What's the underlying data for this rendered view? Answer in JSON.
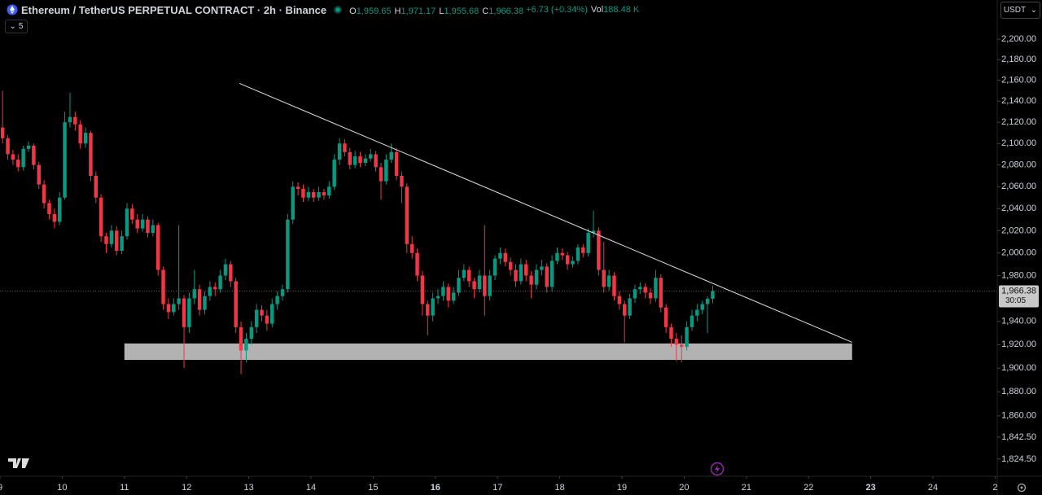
{
  "header": {
    "symbol": "Ethereum / TetherUS PERPETUAL CONTRACT · 2h · Binance",
    "stats": [
      {
        "key": "O",
        "value": "1,959.65"
      },
      {
        "key": "H",
        "value": "1,971.17"
      },
      {
        "key": "L",
        "value": "1,955.68"
      },
      {
        "key": "C",
        "value": "1,966.38"
      }
    ],
    "change": "+6.73 (+0.34%)",
    "volume_key": "Vol",
    "volume": "188.48 K",
    "indicator_count": "5",
    "currency": "USDT"
  },
  "chart_data": {
    "type": "candlestick",
    "log": true,
    "up_color": "#089981",
    "down_color": "#f23645",
    "xlim": [
      0,
      192.4
    ],
    "ylim": [
      1810.6,
      2238.7
    ],
    "yticks": [
      {
        "value": 2200,
        "label": "2,200.00"
      },
      {
        "value": 2180,
        "label": "2,180.00"
      },
      {
        "value": 2160,
        "label": "2,160.00"
      },
      {
        "value": 2140,
        "label": "2,140.00"
      },
      {
        "value": 2120,
        "label": "2,120.00"
      },
      {
        "value": 2100,
        "label": "2,100.00"
      },
      {
        "value": 2080,
        "label": "2,080.00"
      },
      {
        "value": 2060,
        "label": "2,060.00"
      },
      {
        "value": 2040,
        "label": "2,040.00"
      },
      {
        "value": 2020,
        "label": "2,020.00"
      },
      {
        "value": 2000,
        "label": "2,000.00"
      },
      {
        "value": 1980,
        "label": "1,980.00"
      },
      {
        "value": 1940,
        "label": "1,940.00"
      },
      {
        "value": 1920,
        "label": "1,920.00"
      },
      {
        "value": 1900,
        "label": "1,900.00"
      },
      {
        "value": 1880,
        "label": "1,880.00"
      },
      {
        "value": 1860,
        "label": "1,860.00"
      },
      {
        "value": 1842.5,
        "label": "1,842.50"
      },
      {
        "value": 1824.5,
        "label": "1,824.50"
      }
    ],
    "xticks": [
      {
        "value": 0,
        "label": "9"
      },
      {
        "value": 12,
        "label": "10"
      },
      {
        "value": 24,
        "label": "11"
      },
      {
        "value": 36,
        "label": "12"
      },
      {
        "value": 48,
        "label": "13"
      },
      {
        "value": 60,
        "label": "14"
      },
      {
        "value": 72,
        "label": "15"
      },
      {
        "value": 84,
        "label": "16",
        "bold": true
      },
      {
        "value": 96,
        "label": "17"
      },
      {
        "value": 108,
        "label": "18"
      },
      {
        "value": 120,
        "label": "19"
      },
      {
        "value": 132,
        "label": "20"
      },
      {
        "value": 144,
        "label": "21"
      },
      {
        "value": 156,
        "label": "22"
      },
      {
        "value": 168,
        "label": "23",
        "bold": true
      },
      {
        "value": 180,
        "label": "24"
      },
      {
        "value": 192,
        "label": "2"
      }
    ],
    "price_label": {
      "value": 1966.38,
      "label": "1,966.38"
    },
    "countdown": "30:05",
    "trendline": {
      "x": [
        46.2,
        164.4
      ],
      "y": [
        2157,
        1922
      ]
    },
    "zone": {
      "x": [
        24,
        164.4
      ],
      "y": [
        1907,
        1921
      ]
    },
    "ohlc": [
      [
        2115,
        2150,
        2100,
        2105
      ],
      [
        2105,
        2108,
        2085,
        2090
      ],
      [
        2090,
        2094,
        2080,
        2085
      ],
      [
        2085,
        2090,
        2074,
        2078
      ],
      [
        2078,
        2098,
        2075,
        2095
      ],
      [
        2095,
        2102,
        2092,
        2098
      ],
      [
        2098,
        2100,
        2076,
        2080
      ],
      [
        2080,
        2083,
        2058,
        2062
      ],
      [
        2062,
        2066,
        2040,
        2045
      ],
      [
        2045,
        2048,
        2030,
        2035
      ],
      [
        2035,
        2040,
        2022,
        2028
      ],
      [
        2028,
        2055,
        2025,
        2050
      ],
      [
        2050,
        2130,
        2048,
        2120
      ],
      [
        2120,
        2148,
        2115,
        2125
      ],
      [
        2125,
        2130,
        2112,
        2118
      ],
      [
        2118,
        2122,
        2095,
        2100
      ],
      [
        2100,
        2115,
        2096,
        2110
      ],
      [
        2110,
        2112,
        2065,
        2070
      ],
      [
        2070,
        2074,
        2045,
        2050
      ],
      [
        2050,
        2053,
        2010,
        2015
      ],
      [
        2015,
        2018,
        2000,
        2008
      ],
      [
        2008,
        2025,
        2005,
        2020
      ],
      [
        2020,
        2024,
        1998,
        2002
      ],
      [
        2002,
        2020,
        1999,
        2015
      ],
      [
        2015,
        2045,
        2012,
        2040
      ],
      [
        2040,
        2044,
        2026,
        2030
      ],
      [
        2030,
        2035,
        2018,
        2022
      ],
      [
        2022,
        2035,
        2019,
        2030
      ],
      [
        2030,
        2033,
        2014,
        2018
      ],
      [
        2018,
        2030,
        2015,
        2025
      ],
      [
        2025,
        2027,
        1980,
        1985
      ],
      [
        1985,
        1988,
        1950,
        1955
      ],
      [
        1955,
        1960,
        1942,
        1948
      ],
      [
        1948,
        1960,
        1945,
        1955
      ],
      [
        1955,
        2025,
        1950,
        1960
      ],
      [
        1960,
        1963,
        1900,
        1935
      ],
      [
        1935,
        1965,
        1930,
        1960
      ],
      [
        1960,
        1985,
        1955,
        1968
      ],
      [
        1968,
        1972,
        1945,
        1950
      ],
      [
        1950,
        1966,
        1946,
        1962
      ],
      [
        1962,
        1975,
        1958,
        1970
      ],
      [
        1970,
        1974,
        1962,
        1968
      ],
      [
        1968,
        1985,
        1965,
        1980
      ],
      [
        1980,
        1995,
        1976,
        1990
      ],
      [
        1990,
        1993,
        1970,
        1975
      ],
      [
        1975,
        1978,
        1930,
        1935
      ],
      [
        1935,
        1940,
        1895,
        1915
      ],
      [
        1915,
        1930,
        1905,
        1925
      ],
      [
        1925,
        1940,
        1920,
        1935
      ],
      [
        1935,
        1955,
        1930,
        1950
      ],
      [
        1950,
        1954,
        1940,
        1945
      ],
      [
        1945,
        1950,
        1932,
        1938
      ],
      [
        1938,
        1960,
        1935,
        1955
      ],
      [
        1955,
        1966,
        1950,
        1962
      ],
      [
        1962,
        1972,
        1958,
        1968
      ],
      [
        1968,
        2035,
        1965,
        2030
      ],
      [
        2030,
        2065,
        2026,
        2060
      ],
      [
        2060,
        2064,
        2052,
        2058
      ],
      [
        2058,
        2062,
        2046,
        2050
      ],
      [
        2050,
        2060,
        2047,
        2055
      ],
      [
        2055,
        2058,
        2046,
        2050
      ],
      [
        2050,
        2060,
        2047,
        2055
      ],
      [
        2055,
        2058,
        2048,
        2052
      ],
      [
        2052,
        2065,
        2049,
        2060
      ],
      [
        2060,
        2090,
        2057,
        2085
      ],
      [
        2085,
        2105,
        2080,
        2100
      ],
      [
        2100,
        2104,
        2088,
        2092
      ],
      [
        2092,
        2096,
        2076,
        2080
      ],
      [
        2080,
        2093,
        2077,
        2088
      ],
      [
        2088,
        2092,
        2078,
        2082
      ],
      [
        2082,
        2090,
        2079,
        2086
      ],
      [
        2086,
        2095,
        2083,
        2090
      ],
      [
        2090,
        2093,
        2074,
        2078
      ],
      [
        2078,
        2082,
        2048,
        2065
      ],
      [
        2065,
        2090,
        2062,
        2085
      ],
      [
        2085,
        2100,
        2082,
        2092
      ],
      [
        2092,
        2096,
        2066,
        2070
      ],
      [
        2070,
        2074,
        2045,
        2060
      ],
      [
        2060,
        2063,
        2000,
        2008
      ],
      [
        2008,
        2015,
        1995,
        2000
      ],
      [
        2000,
        2004,
        1975,
        1980
      ],
      [
        1980,
        1984,
        1945,
        1955
      ],
      [
        1955,
        1958,
        1928,
        1945
      ],
      [
        1945,
        1965,
        1940,
        1960
      ],
      [
        1960,
        1968,
        1955,
        1962
      ],
      [
        1962,
        1975,
        1958,
        1970
      ],
      [
        1970,
        1973,
        1952,
        1958
      ],
      [
        1958,
        1970,
        1955,
        1965
      ],
      [
        1965,
        1985,
        1962,
        1978
      ],
      [
        1978,
        1990,
        1975,
        1985
      ],
      [
        1985,
        1988,
        1970,
        1975
      ],
      [
        1975,
        1978,
        1960,
        1968
      ],
      [
        1968,
        1985,
        1965,
        1980
      ],
      [
        1980,
        2025,
        1945,
        1962
      ],
      [
        1962,
        1985,
        1958,
        1980
      ],
      [
        1980,
        1998,
        1976,
        1995
      ],
      [
        1995,
        2005,
        1990,
        2000
      ],
      [
        2000,
        2004,
        1988,
        1992
      ],
      [
        1992,
        1996,
        1980,
        1985
      ],
      [
        1985,
        1990,
        1970,
        1975
      ],
      [
        1975,
        1995,
        1972,
        1990
      ],
      [
        1990,
        1994,
        1975,
        1980
      ],
      [
        1980,
        1984,
        1960,
        1972
      ],
      [
        1972,
        1990,
        1968,
        1985
      ],
      [
        1985,
        1994,
        1980,
        1988
      ],
      [
        1988,
        1991,
        1965,
        1970
      ],
      [
        1970,
        1998,
        1966,
        1993
      ],
      [
        1993,
        2005,
        1990,
        2000
      ],
      [
        2000,
        2004,
        1994,
        1998
      ],
      [
        1998,
        2001,
        1985,
        1990
      ],
      [
        1990,
        1997,
        1987,
        1993
      ],
      [
        1993,
        2008,
        1990,
        2005
      ],
      [
        2005,
        2008,
        1996,
        2000
      ],
      [
        2000,
        2022,
        1997,
        2018
      ],
      [
        2018,
        2038,
        2014,
        2020
      ],
      [
        2020,
        2023,
        1980,
        1985
      ],
      [
        1985,
        2010,
        1965,
        1970
      ],
      [
        1970,
        1985,
        1967,
        1980
      ],
      [
        1980,
        1983,
        1958,
        1962
      ],
      [
        1962,
        1966,
        1950,
        1955
      ],
      [
        1955,
        1958,
        1922,
        1945
      ],
      [
        1945,
        1964,
        1942,
        1960
      ],
      [
        1960,
        1972,
        1956,
        1968
      ],
      [
        1968,
        1974,
        1964,
        1970
      ],
      [
        1970,
        1973,
        1960,
        1965
      ],
      [
        1965,
        1969,
        1955,
        1960
      ],
      [
        1960,
        1985,
        1957,
        1978
      ],
      [
        1978,
        1981,
        1948,
        1952
      ],
      [
        1952,
        1955,
        1930,
        1935
      ],
      [
        1935,
        1938,
        1918,
        1925
      ],
      [
        1925,
        1930,
        1906,
        1920
      ],
      [
        1920,
        1928,
        1905,
        1918
      ],
      [
        1918,
        1940,
        1915,
        1935
      ],
      [
        1935,
        1950,
        1932,
        1945
      ],
      [
        1945,
        1955,
        1940,
        1950
      ],
      [
        1950,
        1958,
        1946,
        1955
      ],
      [
        1955,
        1962,
        1930,
        1959.65
      ],
      [
        1959.65,
        1971.17,
        1955.68,
        1966.38
      ]
    ]
  }
}
